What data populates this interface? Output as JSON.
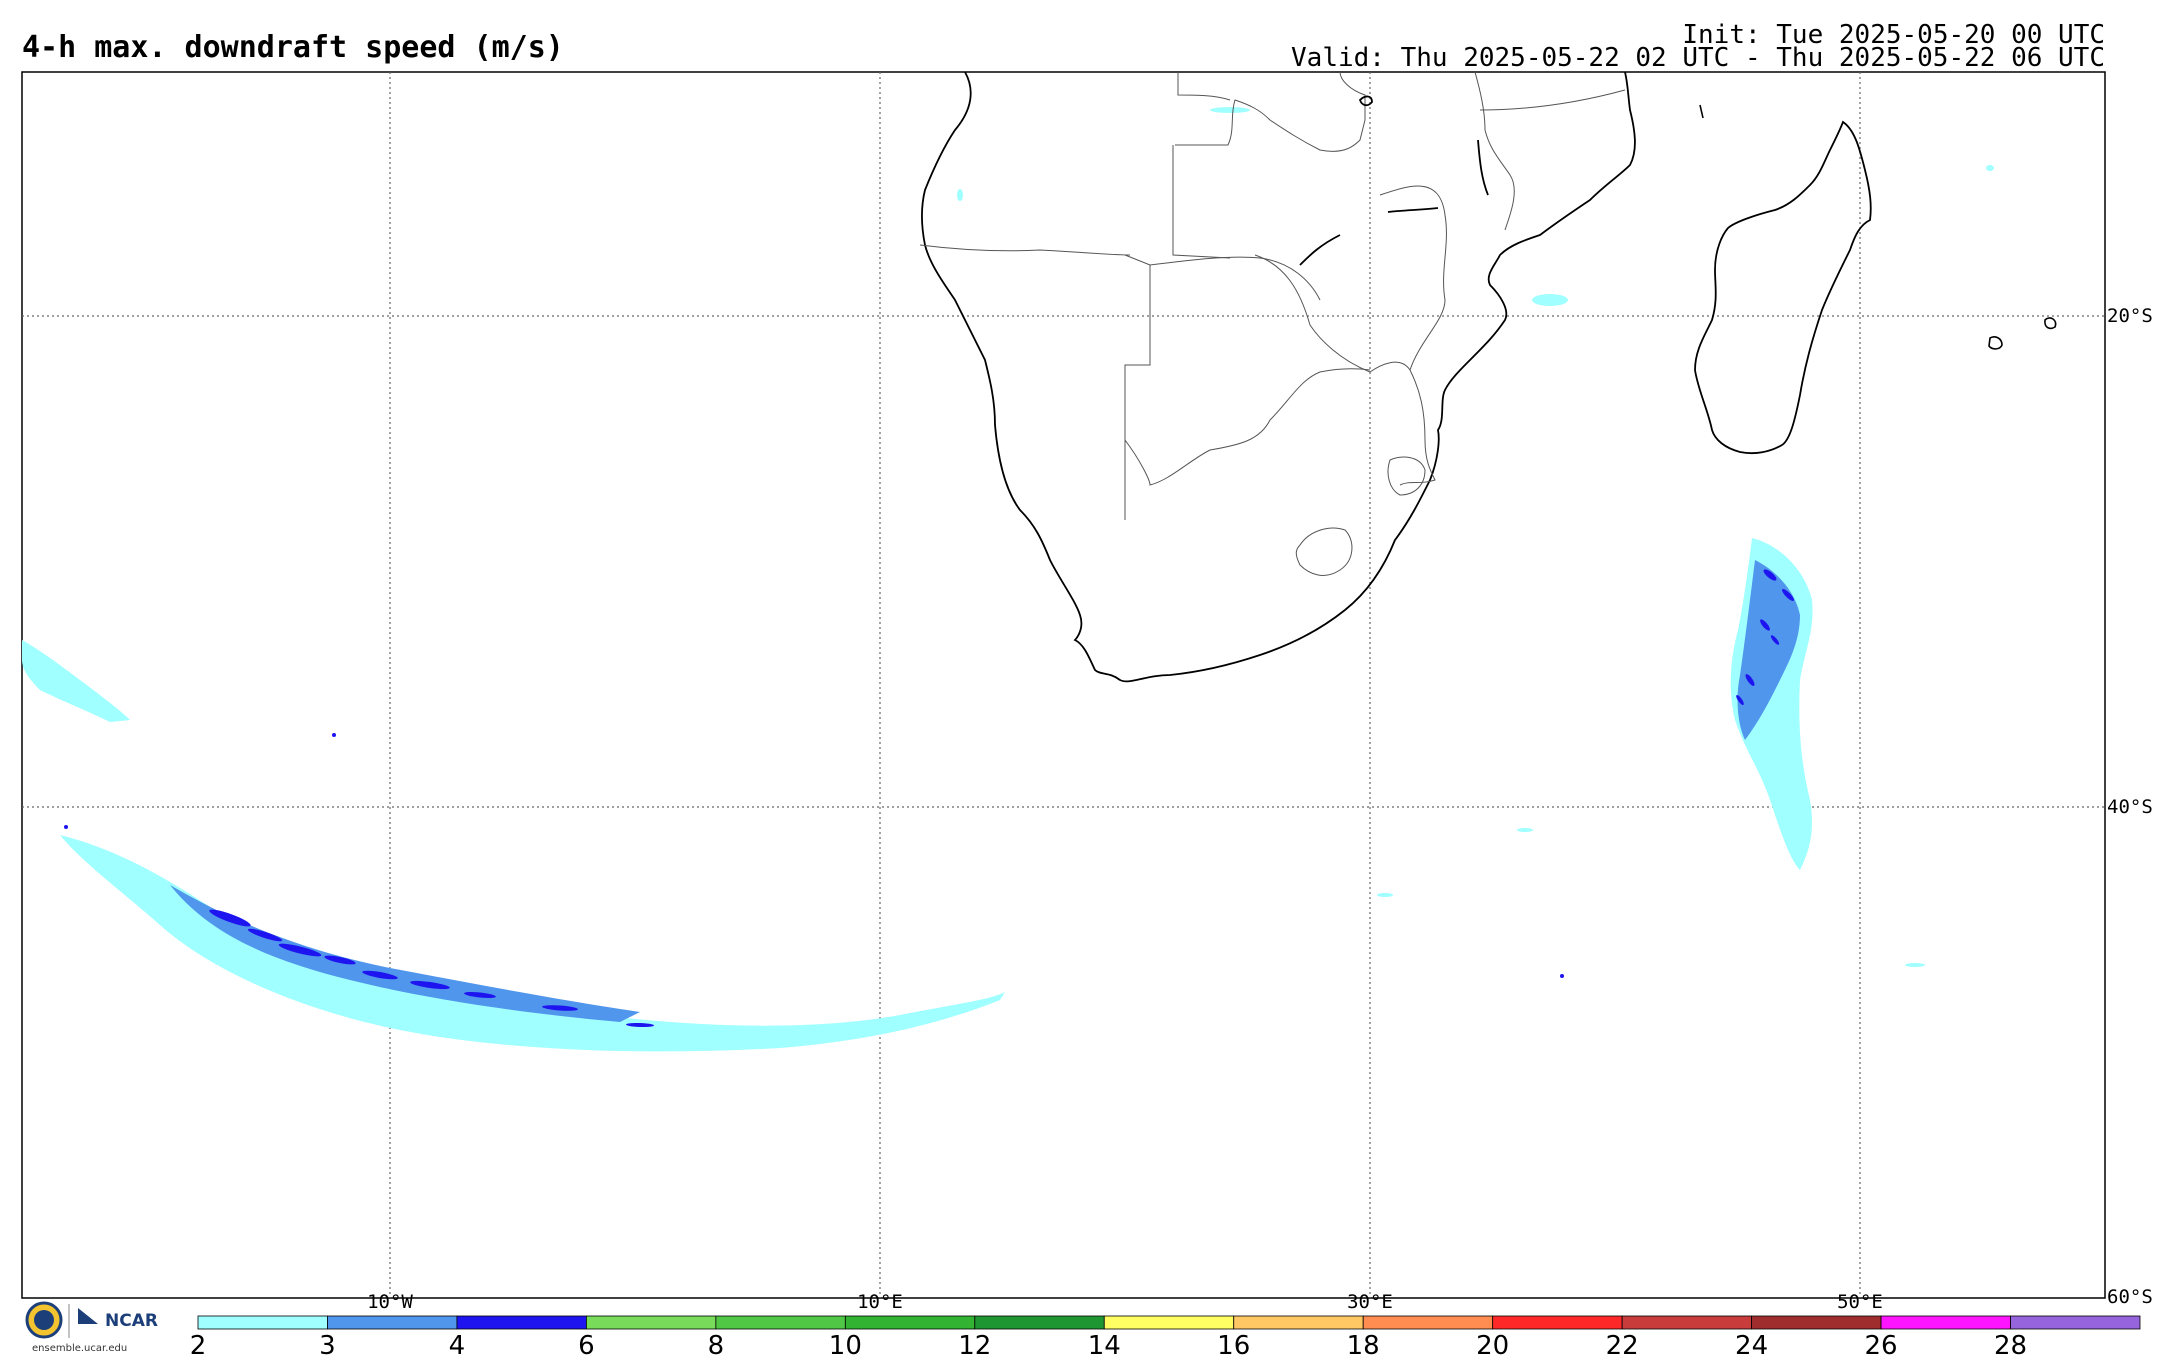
{
  "header": {
    "title": "4-h max. downdraft speed (m/s)",
    "init": "Init: Tue 2025-05-20 00 UTC",
    "valid": "Valid: Thu 2025-05-22 02 UTC - Thu 2025-05-22 06 UTC"
  },
  "axes": {
    "longitude_labels": [
      "10°W",
      "10°E",
      "30°E",
      "50°E"
    ],
    "latitude_labels": [
      "20°S",
      "40°S",
      "60°S"
    ]
  },
  "colorbar": {
    "labels": [
      "2",
      "3",
      "4",
      "6",
      "8",
      "10",
      "12",
      "14",
      "16",
      "18",
      "20",
      "22",
      "24",
      "26",
      "28"
    ],
    "colors": [
      "#a0ffff",
      "#5096ec",
      "#1e14f0",
      "#78dc5a",
      "#50c846",
      "#32b432",
      "#1e9632",
      "#ffff64",
      "#ffc864",
      "#ff8c50",
      "#ff2828",
      "#c83c3c",
      "#a02d2d",
      "#ff14ff",
      "#9664dc"
    ]
  },
  "footer": {
    "logo_text": "NCAR",
    "logo_url": "ensemble.ucar.edu"
  },
  "colors": {
    "light": "#a0ffff",
    "mid": "#5096ec",
    "dark": "#1e14f0",
    "coast": "#000000",
    "border": "#555555",
    "grid": "#666666"
  }
}
